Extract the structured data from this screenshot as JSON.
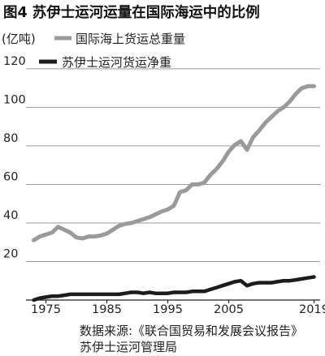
{
  "title": "图4 苏伊士运河运量在国际海运中的比例",
  "unit": "(亿吨)",
  "source": [
    "数据来源:《联合国贸易和发展会议报告》",
    "苏伊士运河管理局"
  ],
  "colors": {
    "seaborne": "#9a9a9a",
    "suez": "#1c1c1c"
  },
  "chart_data": {
    "type": "line",
    "title": "图4 苏伊士运河运量在国际海运中的比例",
    "xlabel": "",
    "ylabel": "(亿吨)",
    "xlim": [
      1972,
      2020
    ],
    "ylim": [
      0,
      125
    ],
    "xticks": [
      1975,
      1985,
      1995,
      2005,
      2019
    ],
    "yticks": [
      20,
      40,
      60,
      80,
      100,
      120
    ],
    "grid": true,
    "legend": "top-left",
    "series": [
      {
        "name": "国际海上货运总重量",
        "color": "#9a9a9a",
        "x": [
          1973,
          1974,
          1975,
          1976,
          1977,
          1978,
          1979,
          1980,
          1981,
          1982,
          1983,
          1984,
          1985,
          1986,
          1987,
          1988,
          1989,
          1990,
          1991,
          1992,
          1993,
          1994,
          1995,
          1996,
          1997,
          1998,
          1999,
          2000,
          2001,
          2002,
          2003,
          2004,
          2005,
          2006,
          2007,
          2008,
          2009,
          2010,
          2011,
          2012,
          2013,
          2014,
          2015,
          2016,
          2017,
          2018,
          2019
        ],
        "values": [
          31,
          33,
          34,
          35,
          38,
          36.5,
          35,
          32.5,
          32,
          33,
          33,
          33.5,
          34.5,
          36.5,
          38.5,
          39.5,
          40,
          41,
          42,
          43,
          44.5,
          46,
          47,
          49,
          56,
          57,
          60,
          60,
          61,
          65,
          68,
          72,
          77,
          80.5,
          82.5,
          78,
          84.5,
          88,
          92,
          95,
          98,
          100,
          103,
          107,
          110,
          111,
          111
        ]
      },
      {
        "name": "苏伊士运河货运净重",
        "color": "#1c1c1c",
        "x": [
          1973,
          1974,
          1975,
          1976,
          1977,
          1978,
          1979,
          1980,
          1981,
          1982,
          1983,
          1984,
          1985,
          1986,
          1987,
          1988,
          1989,
          1990,
          1991,
          1992,
          1993,
          1994,
          1995,
          1996,
          1997,
          1998,
          1999,
          2000,
          2001,
          2002,
          2003,
          2004,
          2005,
          2006,
          2007,
          2008,
          2009,
          2010,
          2011,
          2012,
          2013,
          2014,
          2015,
          2016,
          2017,
          2018,
          2019
        ],
        "values": [
          0,
          1,
          1.5,
          2,
          2,
          2.5,
          3,
          3,
          3,
          3,
          3,
          3,
          3,
          3,
          3,
          3.5,
          4,
          4,
          3.5,
          4,
          3.5,
          3.5,
          3.5,
          4,
          4,
          4,
          4.5,
          4.5,
          4.5,
          5.5,
          6.5,
          7.5,
          8.5,
          9.5,
          10,
          7.5,
          8.5,
          9,
          9,
          9,
          9.5,
          10,
          10,
          10.5,
          11,
          11.5,
          12
        ]
      }
    ]
  }
}
